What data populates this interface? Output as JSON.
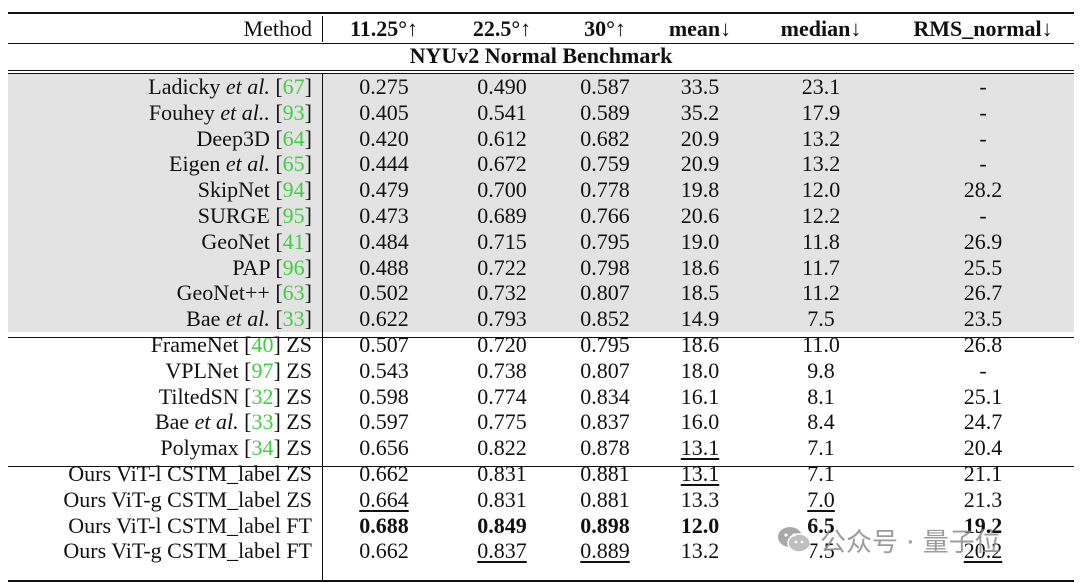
{
  "header": {
    "method": "Method",
    "columns": [
      "11.25°↑",
      "22.5°↑",
      "30°↑",
      "mean↓",
      "median↓",
      "RMS_normal↓"
    ]
  },
  "benchmark_title": "NYUv2 Normal Benchmark",
  "rows": [
    {
      "name": "Ladicky",
      "etal": " et al.",
      "ref": "67",
      "suffix": "",
      "v": [
        "0.275",
        "0.490",
        "0.587",
        "33.5",
        "23.1",
        "-"
      ]
    },
    {
      "name": "Fouhey",
      "etal": " et al..",
      "ref": "93",
      "suffix": "",
      "v": [
        "0.405",
        "0.541",
        "0.589",
        "35.2",
        "17.9",
        "-"
      ]
    },
    {
      "name": "Deep3D",
      "etal": "",
      "ref": "64",
      "suffix": "",
      "v": [
        "0.420",
        "0.612",
        "0.682",
        "20.9",
        "13.2",
        "-"
      ]
    },
    {
      "name": "Eigen",
      "etal": " et al.",
      "ref": "65",
      "suffix": "",
      "v": [
        "0.444",
        "0.672",
        "0.759",
        "20.9",
        "13.2",
        "-"
      ]
    },
    {
      "name": "SkipNet",
      "etal": "",
      "ref": "94",
      "suffix": "",
      "v": [
        "0.479",
        "0.700",
        "0.778",
        "19.8",
        "12.0",
        "28.2"
      ]
    },
    {
      "name": "SURGE",
      "etal": "",
      "ref": "95",
      "suffix": "",
      "v": [
        "0.473",
        "0.689",
        "0.766",
        "20.6",
        "12.2",
        "-"
      ]
    },
    {
      "name": "GeoNet",
      "etal": "",
      "ref": "41",
      "suffix": "",
      "v": [
        "0.484",
        "0.715",
        "0.795",
        "19.0",
        "11.8",
        "26.9"
      ]
    },
    {
      "name": "PAP",
      "etal": "",
      "ref": "96",
      "suffix": "",
      "v": [
        "0.488",
        "0.722",
        "0.798",
        "18.6",
        "11.7",
        "25.5"
      ]
    },
    {
      "name": "GeoNet++",
      "etal": "",
      "ref": "63",
      "suffix": "",
      "v": [
        "0.502",
        "0.732",
        "0.807",
        "18.5",
        "11.2",
        "26.7"
      ]
    },
    {
      "name": "Bae",
      "etal": " et al.",
      "ref": "33",
      "suffix": "",
      "v": [
        "0.622",
        "0.793",
        "0.852",
        "14.9",
        "7.5",
        "23.5"
      ]
    },
    {
      "name": "FrameNet",
      "etal": "",
      "ref": "40",
      "suffix": " ZS",
      "v": [
        "0.507",
        "0.720",
        "0.795",
        "18.6",
        "11.0",
        "26.8"
      ]
    },
    {
      "name": "VPLNet",
      "etal": "",
      "ref": "97",
      "suffix": " ZS",
      "v": [
        "0.543",
        "0.738",
        "0.807",
        "18.0",
        "9.8",
        "-"
      ]
    },
    {
      "name": "TiltedSN",
      "etal": "",
      "ref": "32",
      "suffix": " ZS",
      "v": [
        "0.598",
        "0.774",
        "0.834",
        "16.1",
        "8.1",
        "25.1"
      ]
    },
    {
      "name": "Bae",
      "etal": " et al.",
      "ref": "33",
      "suffix": " ZS",
      "v": [
        "0.597",
        "0.775",
        "0.837",
        "16.0",
        "8.4",
        "24.7"
      ]
    },
    {
      "name": "Polymax",
      "etal": "",
      "ref": "34",
      "suffix": " ZS",
      "v": [
        "0.656",
        "0.822",
        "0.878",
        "13.1",
        "7.1",
        "20.4"
      ]
    },
    {
      "name": "Ours ViT-l CSTM_label ZS",
      "etal": "",
      "ref": "",
      "suffix": "",
      "v": [
        "0.662",
        "0.831",
        "0.881",
        "13.1",
        "7.1",
        "21.1"
      ]
    },
    {
      "name": "Ours ViT-g CSTM_label ZS",
      "etal": "",
      "ref": "",
      "suffix": "",
      "v": [
        "0.664",
        "0.831",
        "0.881",
        "13.3",
        "7.0",
        "21.3"
      ]
    },
    {
      "name": "Ours ViT-l CSTM_label FT",
      "etal": "",
      "ref": "",
      "suffix": "",
      "v": [
        "0.688",
        "0.849",
        "0.898",
        "12.0",
        "6.5",
        "19.2"
      ]
    },
    {
      "name": "Ours ViT-g CSTM_label FT",
      "etal": "",
      "ref": "",
      "suffix": "",
      "v": [
        "0.662",
        "0.837",
        "0.889",
        "13.2",
        "7.5",
        "20.2"
      ]
    }
  ],
  "styles": {
    "bold": [
      [
        17,
        0
      ],
      [
        17,
        1
      ],
      [
        17,
        2
      ],
      [
        17,
        3
      ],
      [
        17,
        4
      ],
      [
        17,
        5
      ]
    ],
    "underline": [
      [
        14,
        3
      ],
      [
        15,
        3
      ],
      [
        16,
        0
      ],
      [
        16,
        4
      ],
      [
        18,
        1
      ],
      [
        18,
        2
      ],
      [
        18,
        5
      ]
    ]
  },
  "colors": {
    "ref": "#3fd03f",
    "shade": "#e3e3e3"
  },
  "watermark": {
    "icon": "wechat-icon",
    "text": "公众号 · 量子位"
  }
}
